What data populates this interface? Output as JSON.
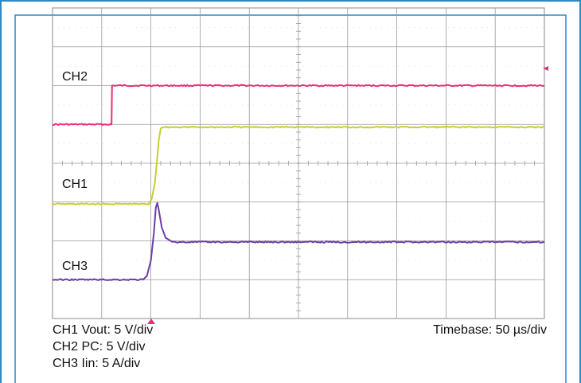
{
  "chart_data": {
    "type": "line",
    "title": "",
    "grid": true,
    "grid_divisions": {
      "horizontal": 10,
      "vertical": 8
    },
    "x_unit": "µs",
    "x_per_div": 50,
    "xlim": [
      0,
      500
    ],
    "series": [
      {
        "name": "CH2",
        "label": "CH2",
        "color": "#e8307a",
        "scale": "5 V/div",
        "points": [
          [
            0,
            5.0
          ],
          [
            60,
            5.0
          ],
          [
            60.5,
            6.0
          ],
          [
            500,
            6.0
          ]
        ],
        "y_div_offset": 0
      },
      {
        "name": "CH1",
        "label": "CH1",
        "color": "#c6d02e",
        "scale": "5 V/div",
        "points": [
          [
            0,
            2.95
          ],
          [
            98,
            2.95
          ],
          [
            101,
            3.1
          ],
          [
            104,
            3.5
          ],
          [
            106,
            4.0
          ],
          [
            108,
            4.6
          ],
          [
            110,
            4.9
          ],
          [
            112,
            4.93
          ],
          [
            500,
            4.93
          ]
        ],
        "y_div_offset": 0
      },
      {
        "name": "CH3",
        "label": "CH3",
        "color": "#6a3fa8",
        "scale": "5 A/div",
        "points": [
          [
            0,
            1.0
          ],
          [
            92,
            1.0
          ],
          [
            96,
            1.1
          ],
          [
            100,
            1.5
          ],
          [
            103,
            2.2
          ],
          [
            105,
            2.85
          ],
          [
            106.5,
            2.98
          ],
          [
            108,
            2.8
          ],
          [
            111,
            2.35
          ],
          [
            115,
            2.08
          ],
          [
            122,
            1.97
          ],
          [
            500,
            1.97
          ]
        ],
        "y_div_offset": 0
      }
    ],
    "settings": {
      "ch1": "CH1 Vout: 5 V/div",
      "ch2": "CH2 PC: 5 V/div",
      "ch3": "CH3 Iin: 5 A/div",
      "timebase": "Timebase: 50  µs/div"
    },
    "colors": {
      "border": "#2a8ac4",
      "grid": "#9a9a9a",
      "trigger_marker": "#e8307a"
    }
  }
}
